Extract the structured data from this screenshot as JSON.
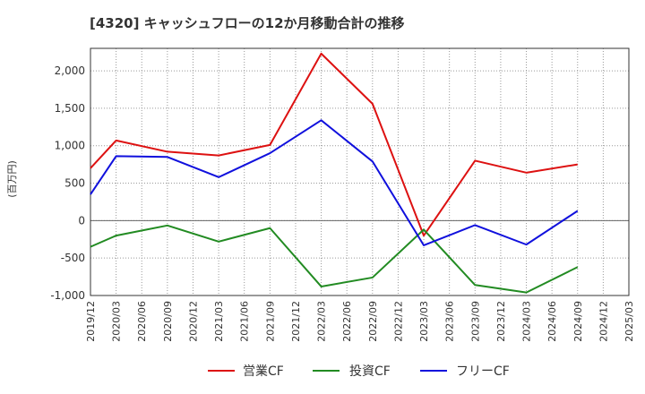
{
  "chart_data": {
    "type": "line",
    "title": "[4320]  キャッシュフローの12か月移動合計の推移",
    "ylabel": "(百万円)",
    "xlabel": "",
    "ylim": [
      -1000,
      2300
    ],
    "yticks": [
      -1000,
      -500,
      0,
      500,
      1000,
      1500,
      2000
    ],
    "ytick_labels": [
      "-1,000",
      "-500",
      "0",
      "500",
      "1,000",
      "1,500",
      "2,000"
    ],
    "categories": [
      "2019/12",
      "2020/03",
      "2020/06",
      "2020/09",
      "2020/12",
      "2021/03",
      "2021/06",
      "2021/09",
      "2021/12",
      "2022/03",
      "2022/06",
      "2022/09",
      "2022/12",
      "2023/03",
      "2023/06",
      "2023/09",
      "2023/12",
      "2024/03",
      "2024/06",
      "2024/09",
      "2024/12",
      "2025/03"
    ],
    "grid": true,
    "legend_position": "bottom",
    "series": [
      {
        "name": "営業CF",
        "color": "#dd1111",
        "points": [
          [
            0,
            700
          ],
          [
            1,
            1070
          ],
          [
            3,
            920
          ],
          [
            5,
            870
          ],
          [
            7,
            1010
          ],
          [
            9,
            2230
          ],
          [
            11,
            1560
          ],
          [
            13,
            -200
          ],
          [
            15,
            800
          ],
          [
            17,
            640
          ],
          [
            19,
            750
          ]
        ]
      },
      {
        "name": "投資CF",
        "color": "#228b22",
        "points": [
          [
            0,
            -350
          ],
          [
            1,
            -200
          ],
          [
            3,
            -65
          ],
          [
            5,
            -280
          ],
          [
            7,
            -100
          ],
          [
            9,
            -880
          ],
          [
            11,
            -760
          ],
          [
            13,
            -120
          ],
          [
            15,
            -860
          ],
          [
            17,
            -960
          ],
          [
            19,
            -620
          ]
        ]
      },
      {
        "name": "フリーCF",
        "color": "#1010dd",
        "points": [
          [
            0,
            350
          ],
          [
            1,
            860
          ],
          [
            3,
            850
          ],
          [
            5,
            580
          ],
          [
            7,
            900
          ],
          [
            9,
            1340
          ],
          [
            11,
            790
          ],
          [
            13,
            -330
          ],
          [
            15,
            -60
          ],
          [
            17,
            -320
          ],
          [
            19,
            130
          ]
        ]
      }
    ]
  }
}
